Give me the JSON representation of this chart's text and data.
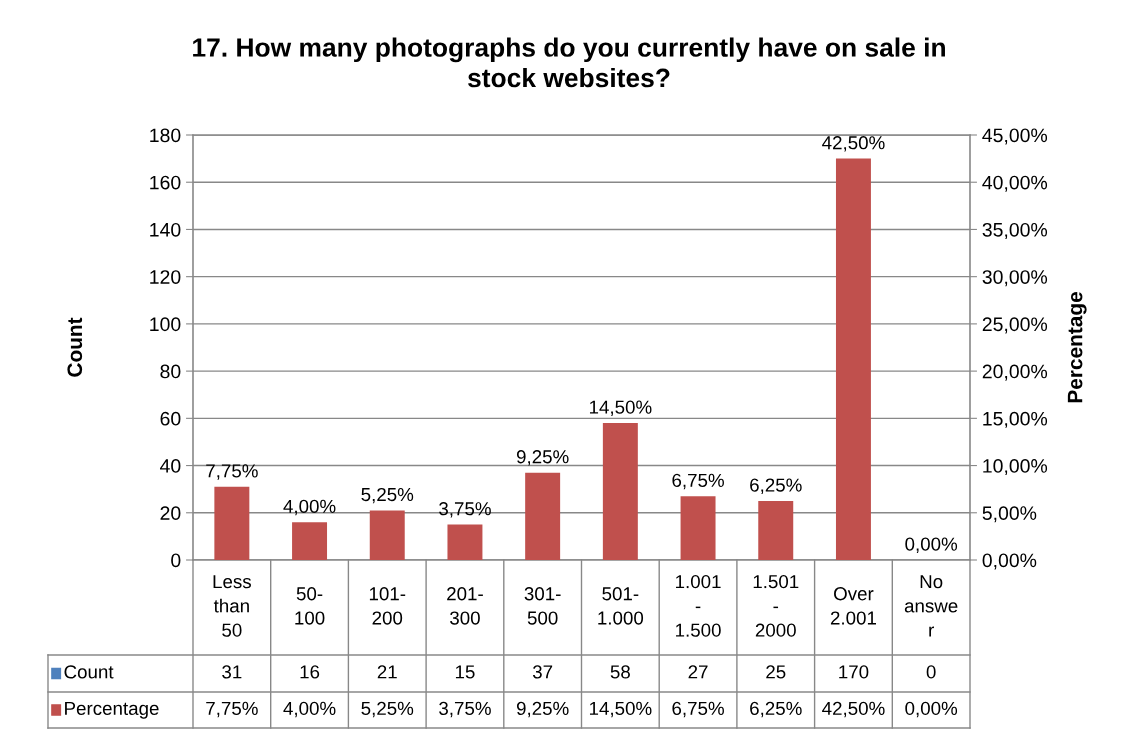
{
  "chart_data": {
    "type": "bar",
    "title": "17. How many photographs do you currently have on sale in stock websites?",
    "categories": [
      "Less than 50",
      "50-100",
      "101-200",
      "201-300",
      "301-500",
      "501-1.000",
      "1.001-1.500",
      "1.501-2000",
      "Over 2.001",
      "No answer"
    ],
    "series": [
      {
        "name": "Count",
        "color": "#4f81bd",
        "values": [
          null,
          null,
          null,
          null,
          null,
          null,
          null,
          null,
          null,
          null
        ],
        "value_labels": [
          "31",
          "16",
          "21",
          "15",
          "37",
          "58",
          "27",
          "25",
          "170",
          "0"
        ]
      },
      {
        "name": "Percentage",
        "color": "#c0504d",
        "axis": "y2",
        "values": [
          7.75,
          4.0,
          5.25,
          3.75,
          9.25,
          14.5,
          6.75,
          6.25,
          42.5,
          0.0
        ],
        "value_labels": [
          "7,75%",
          "4,00%",
          "5,25%",
          "3,75%",
          "9,25%",
          "14,50%",
          "6,75%",
          "6,25%",
          "42,50%",
          "0,00%"
        ]
      }
    ],
    "ylabel": "Count",
    "y2label": "Percentage",
    "ylim": [
      0,
      180
    ],
    "yticks": [
      0,
      20,
      40,
      60,
      80,
      100,
      120,
      140,
      160,
      180
    ],
    "y2lim": [
      0,
      45
    ],
    "y2ticks": [
      {
        "value": 0,
        "label": "0,00%"
      },
      {
        "value": 5,
        "label": "5,00%"
      },
      {
        "value": 10,
        "label": "10,00%"
      },
      {
        "value": 15,
        "label": "15,00%"
      },
      {
        "value": 20,
        "label": "20,00%"
      },
      {
        "value": 25,
        "label": "25,00%"
      },
      {
        "value": 30,
        "label": "30,00%"
      },
      {
        "value": 35,
        "label": "35,00%"
      },
      {
        "value": 40,
        "label": "40,00%"
      },
      {
        "value": 45,
        "label": "45,00%"
      }
    ],
    "grid": "y",
    "legend": "bottom"
  }
}
